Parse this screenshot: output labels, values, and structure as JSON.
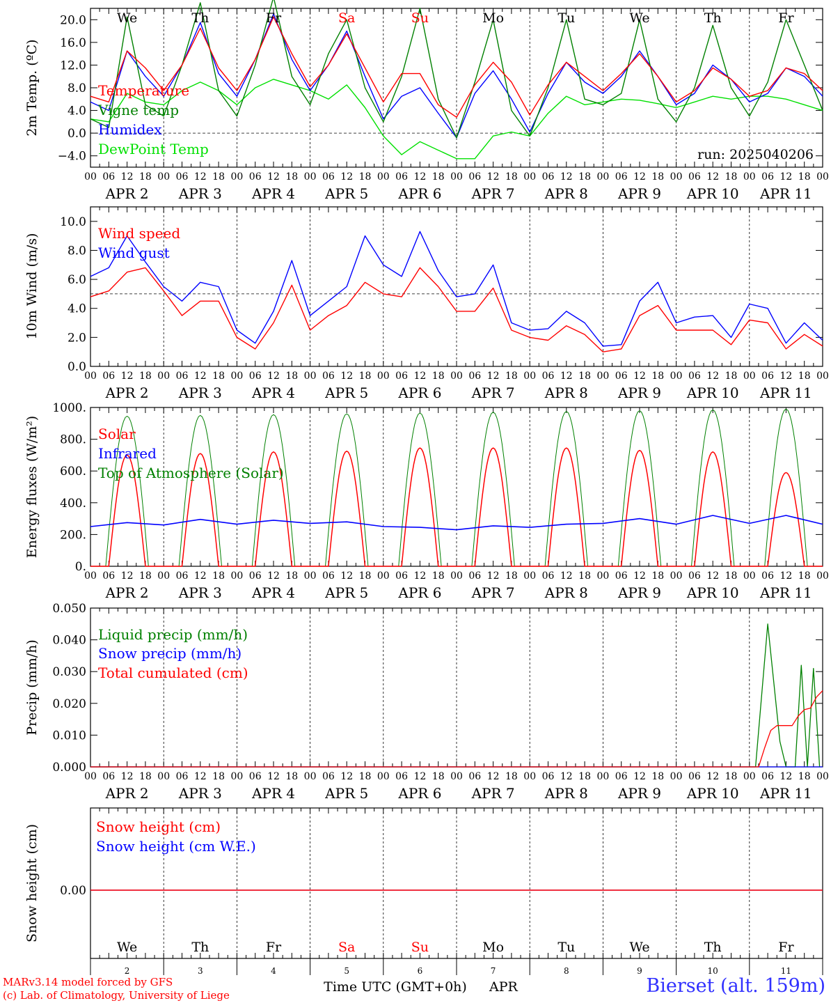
{
  "meta": {
    "credit_line1": "MARv3.14 model forced by GFS",
    "credit_line2": "(c) Lab. of Climatology, University of Liege",
    "station": "Bierset (alt. 159m)",
    "run_label": "run: 2025040206",
    "xaxis_title": "Time UTC (GMT+0h)",
    "month_label": "APR"
  },
  "colors": {
    "red": "#ff0000",
    "blue": "#0000ff",
    "green": "#008000",
    "lightgreen": "#00e000",
    "weekend": "#ff0000",
    "axis": "#000000"
  },
  "time_axis": {
    "hour_ticks": [
      "00",
      "06",
      "12",
      "18"
    ],
    "date_labels": [
      "APR  2",
      "APR  3",
      "APR  4",
      "APR  5",
      "APR  6",
      "APR  7",
      "APR  8",
      "APR  9",
      "APR 10",
      "APR 11"
    ],
    "days": [
      {
        "weekday": "We",
        "day": "2",
        "weekend": false
      },
      {
        "weekday": "Th",
        "day": "3",
        "weekend": false
      },
      {
        "weekday": "Fr",
        "day": "4",
        "weekend": false
      },
      {
        "weekday": "Sa",
        "day": "5",
        "weekend": true
      },
      {
        "weekday": "Su",
        "day": "6",
        "weekend": true
      },
      {
        "weekday": "Mo",
        "day": "7",
        "weekend": false
      },
      {
        "weekday": "Tu",
        "day": "8",
        "weekend": false
      },
      {
        "weekday": "We",
        "day": "9",
        "weekend": false
      },
      {
        "weekday": "Th",
        "day": "10",
        "weekend": false
      },
      {
        "weekday": "Fr",
        "day": "11",
        "weekend": false
      }
    ]
  },
  "chart_data": [
    {
      "id": "temperature",
      "type": "line",
      "ylabel": "2m Temp. (ºC)",
      "ylim": [
        -6,
        22
      ],
      "yticks": [
        -4,
        0,
        4,
        8,
        12,
        16,
        20
      ],
      "ytick_labels": [
        "−4.0",
        "0.0",
        "4.0",
        "8.0",
        "12.0",
        "16.0",
        "20.0"
      ],
      "dashed_y": 0,
      "x_hours": [
        0,
        6,
        12,
        18,
        24,
        30,
        36,
        42,
        48,
        54,
        60,
        66,
        72,
        78,
        84,
        90,
        96,
        102,
        108,
        114,
        120,
        126,
        132,
        138,
        144,
        150,
        156,
        162,
        168,
        174,
        180,
        186,
        192,
        198,
        204,
        210,
        216,
        222,
        228,
        234,
        240
      ],
      "series": [
        {
          "name": "Temperature",
          "color": "red",
          "values": [
            6.5,
            5.5,
            14.5,
            11.5,
            7.5,
            12,
            18.5,
            11.5,
            7.5,
            13,
            20.5,
            14,
            8.2,
            12,
            17.5,
            11.5,
            5.5,
            10.5,
            10.5,
            5,
            2.8,
            8.5,
            12.5,
            9,
            3.2,
            8.5,
            12.5,
            10,
            7.5,
            10.5,
            14,
            10,
            5.5,
            7.5,
            11.5,
            9.5,
            6.5,
            7.5,
            11.5,
            10.5,
            7.5
          ]
        },
        {
          "name": "Vigne temp",
          "color": "green",
          "values": [
            2.5,
            1,
            20.5,
            5,
            3,
            12,
            23,
            7.5,
            3,
            12,
            24,
            10,
            5,
            14,
            20,
            8,
            2,
            10,
            22,
            6,
            -0.8,
            9,
            20,
            4,
            -0.5,
            8,
            20,
            6,
            5,
            7,
            20,
            6,
            2,
            8,
            19,
            8,
            3,
            9,
            20,
            12,
            4
          ]
        },
        {
          "name": "Humidex",
          "color": "blue",
          "values": [
            5.5,
            4,
            14.5,
            10,
            6.5,
            12,
            19.5,
            10.5,
            6.5,
            13,
            21,
            13,
            7.5,
            12,
            18,
            10,
            2.5,
            6.5,
            8,
            3.5,
            -0.8,
            7,
            11,
            6,
            0.2,
            7,
            12.5,
            9,
            7,
            10,
            14.5,
            10,
            5,
            7,
            12,
            9.5,
            5.5,
            7,
            11.5,
            10,
            6.5
          ]
        },
        {
          "name": "DewPoint Temp",
          "color": "lightgreen",
          "values": [
            2.5,
            2,
            7,
            5.5,
            5,
            7.5,
            9,
            7.5,
            5,
            8,
            9.5,
            8.5,
            7.5,
            6,
            8.5,
            4.5,
            -0.5,
            -3.8,
            -1.5,
            -3,
            -4.5,
            -4.5,
            -0.5,
            0.2,
            -0.5,
            3.5,
            6.5,
            5,
            5.5,
            6,
            5.8,
            5.2,
            4.5,
            5.5,
            6.5,
            6,
            6.5,
            6.5,
            6,
            5,
            4
          ]
        }
      ]
    },
    {
      "id": "wind",
      "type": "line",
      "ylabel": "10m Wind (m/s)",
      "ylim": [
        0,
        11
      ],
      "yticks": [
        0,
        2,
        4,
        6,
        8,
        10
      ],
      "ytick_labels": [
        "0.0",
        "2.0",
        "4.0",
        "6.0",
        "8.0",
        "10.0"
      ],
      "dashed_y": 5,
      "x_hours": [
        0,
        6,
        12,
        18,
        24,
        30,
        36,
        42,
        48,
        54,
        60,
        66,
        72,
        78,
        84,
        90,
        96,
        102,
        108,
        114,
        120,
        126,
        132,
        138,
        144,
        150,
        156,
        162,
        168,
        174,
        180,
        186,
        192,
        198,
        204,
        210,
        216,
        222,
        228,
        234,
        240
      ],
      "series": [
        {
          "name": "Wind speed",
          "color": "red",
          "values": [
            4.8,
            5.2,
            6.5,
            6.8,
            5.2,
            3.5,
            4.5,
            4.5,
            2.0,
            1.2,
            3.0,
            5.6,
            2.5,
            3.5,
            4.2,
            5.8,
            5.0,
            4.8,
            6.8,
            5.5,
            3.8,
            3.8,
            5.4,
            2.5,
            2.0,
            1.8,
            2.8,
            2.2,
            1.0,
            1.2,
            3.5,
            4.2,
            2.5,
            2.5,
            2.5,
            1.5,
            3.2,
            3.0,
            1.2,
            2.2,
            1.4
          ]
        },
        {
          "name": "Wind gust",
          "color": "blue",
          "values": [
            6.2,
            6.8,
            9.0,
            7.2,
            5.5,
            4.5,
            5.8,
            5.5,
            2.5,
            1.6,
            3.8,
            7.3,
            3.5,
            4.5,
            5.5,
            9.0,
            7.0,
            6.2,
            9.3,
            6.6,
            4.8,
            5.0,
            7.0,
            3.0,
            2.5,
            2.6,
            3.8,
            3.0,
            1.4,
            1.5,
            4.5,
            5.8,
            3.0,
            3.4,
            3.5,
            2.0,
            4.3,
            4.0,
            1.6,
            3.0,
            1.8
          ]
        }
      ]
    },
    {
      "id": "energy",
      "type": "line",
      "ylabel": "Energy fluxes (W/m²)",
      "ylim": [
        0,
        1000
      ],
      "yticks": [
        0,
        200,
        400,
        600,
        800,
        1000
      ],
      "ytick_labels": [
        "0.",
        "200.",
        "400.",
        "600.",
        "800.",
        "1000."
      ],
      "peak_hour": 12,
      "daylight_hours": [
        6,
        18
      ],
      "series": [
        {
          "name": "Solar",
          "color": "red",
          "daily_peaks": [
            700,
            710,
            720,
            725,
            745,
            745,
            745,
            730,
            720,
            590
          ]
        },
        {
          "name": "Infrared",
          "color": "blue",
          "x_hours": [
            0,
            12,
            24,
            36,
            48,
            60,
            72,
            84,
            96,
            108,
            120,
            132,
            144,
            156,
            168,
            180,
            192,
            204,
            216,
            228,
            240
          ],
          "values": [
            250,
            275,
            260,
            295,
            265,
            290,
            270,
            280,
            250,
            245,
            230,
            255,
            245,
            265,
            270,
            300,
            265,
            320,
            270,
            320,
            265
          ]
        },
        {
          "name": "Top of Atmosphere (Solar)",
          "color": "green",
          "daily_peaks": [
            945,
            950,
            955,
            960,
            965,
            970,
            975,
            980,
            985,
            990
          ]
        }
      ]
    },
    {
      "id": "precip",
      "type": "line",
      "ylabel": "Precip (mm/h)",
      "ylim": [
        0,
        0.05
      ],
      "yticks": [
        0,
        0.01,
        0.02,
        0.03,
        0.04,
        0.05
      ],
      "ytick_labels": [
        "0.000",
        "0.010",
        "0.020",
        "0.030",
        "0.040",
        "0.050"
      ],
      "series": [
        {
          "name": "Liquid precip (mm/h)",
          "color": "green",
          "points": [
            [
              0,
              0
            ],
            [
              218,
              0
            ],
            [
              222,
              0.045
            ],
            [
              226,
              0.008
            ],
            [
              228,
              0
            ],
            [
              231,
              0
            ],
            [
              233,
              0.032
            ],
            [
              235,
              0
            ],
            [
              237,
              0.031
            ],
            [
              239,
              0
            ]
          ]
        },
        {
          "name": "Snow precip (mm/h)",
          "color": "blue",
          "points": [
            [
              0,
              0
            ],
            [
              240,
              0
            ]
          ]
        },
        {
          "name": "Total cumulated (cm)",
          "color": "red",
          "points": [
            [
              0,
              0
            ],
            [
              219,
              0
            ],
            [
              221,
              0.006
            ],
            [
              223,
              0.0115
            ],
            [
              225,
              0.013
            ],
            [
              230,
              0.013
            ],
            [
              232,
              0.016
            ],
            [
              234,
              0.018
            ],
            [
              236,
              0.0185
            ],
            [
              238,
              0.022
            ],
            [
              240,
              0.024
            ]
          ]
        }
      ]
    },
    {
      "id": "snow",
      "type": "line",
      "ylabel": "Snow height (cm)",
      "yticks": [
        0
      ],
      "ytick_labels": [
        "0.00"
      ],
      "series": [
        {
          "name": "Snow height (cm)",
          "color": "red",
          "values": [
            0,
            0
          ]
        },
        {
          "name": "Snow height (cm W.E.)",
          "color": "blue",
          "values": [
            0,
            0
          ]
        }
      ]
    }
  ]
}
